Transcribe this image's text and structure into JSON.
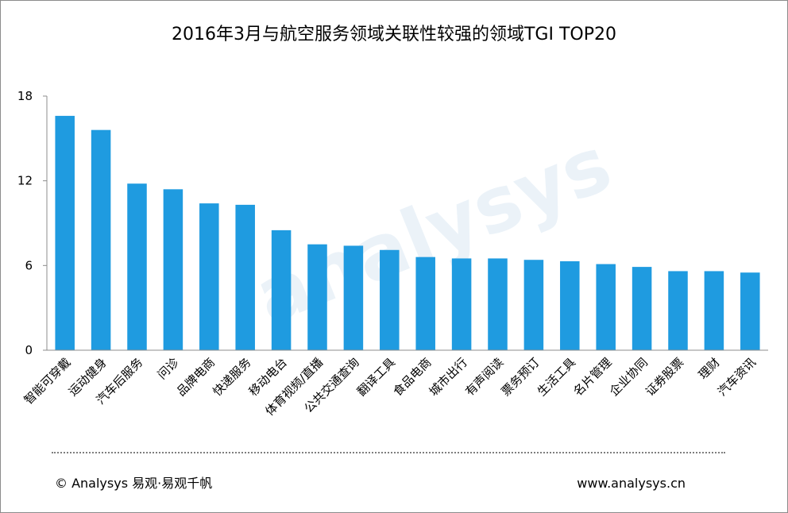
{
  "chart_data": {
    "type": "bar",
    "title": "2016年3月与航空服务领域关联性较强的领域TGI TOP20",
    "xlabel": "",
    "ylabel": "",
    "ylim": [
      0,
      18
    ],
    "yticks": [
      "0",
      "6",
      "12",
      "18"
    ],
    "grid": false,
    "legend": "none",
    "bar_color": "#1f9be0",
    "categories": [
      "智能可穿戴",
      "运动健身",
      "汽车后服务",
      "问诊",
      "品牌电商",
      "快递服务",
      "移动电台",
      "体育视频/直播",
      "公共交通查询",
      "翻译工具",
      "食品电商",
      "城市出行",
      "有声阅读",
      "票务预订",
      "生活工具",
      "名片管理",
      "企业协同",
      "证券股票",
      "理财",
      "汽车资讯"
    ],
    "values": [
      16.6,
      15.6,
      11.8,
      11.4,
      10.4,
      10.3,
      8.5,
      7.5,
      7.4,
      7.1,
      6.6,
      6.5,
      6.5,
      6.4,
      6.3,
      6.1,
      5.9,
      5.6,
      5.6,
      5.5
    ]
  },
  "watermark": {
    "text": "analysys"
  },
  "footer": {
    "copyright": "© Analysys 易观·易观千帆",
    "website": "www.analysys.cn"
  }
}
